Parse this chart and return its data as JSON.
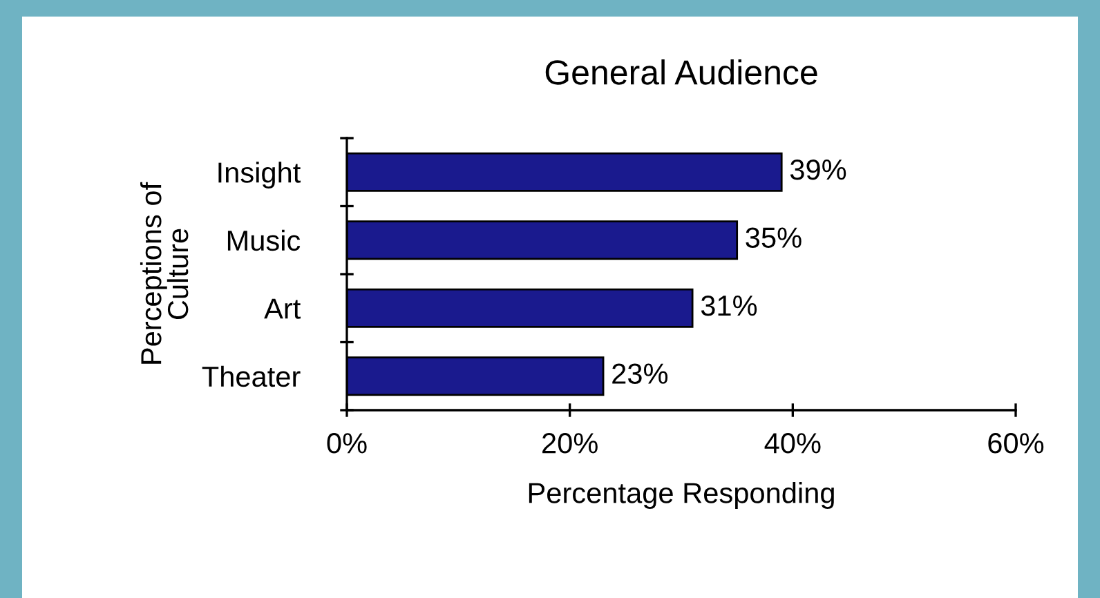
{
  "chart_data": {
    "type": "bar",
    "orientation": "horizontal",
    "title": "General Audience",
    "xlabel": "Percentage Responding",
    "ylabel": "Perceptions of\nCulture",
    "categories": [
      "Insight",
      "Music",
      "Art",
      "Theater"
    ],
    "values": [
      39,
      35,
      31,
      23
    ],
    "color": "#1a1a8e",
    "value_labels": [
      "39%",
      "35%",
      "31%",
      "23%"
    ],
    "xlim": [
      0,
      60
    ],
    "xticks": [
      {
        "value": 0,
        "label": "0%"
      },
      {
        "value": 20,
        "label": "20%"
      },
      {
        "value": 40,
        "label": "40%"
      },
      {
        "value": 60,
        "label": "60%"
      }
    ],
    "grid": false,
    "legend": false
  }
}
